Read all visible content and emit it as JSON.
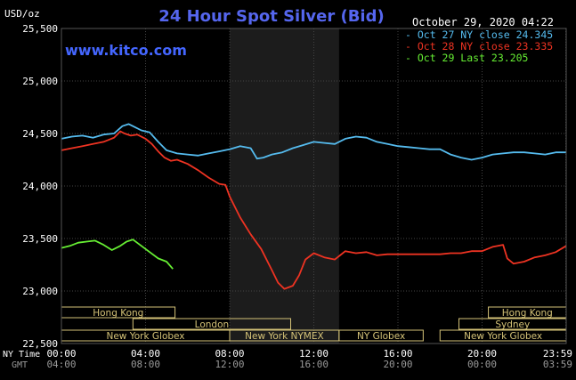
{
  "chart_data": {
    "type": "line",
    "title": "24 Hour Spot Silver (Bid)",
    "ylabel": "USD/oz",
    "watermark": "www.kitco.com",
    "timestamp": "October 29, 2020 04:22",
    "ylim": [
      22500,
      25500
    ],
    "y_ticks": [
      "25,500",
      "25,000",
      "24,500",
      "24,000",
      "23,500",
      "23,000",
      "22,500"
    ],
    "y_tick_values": [
      25500,
      25000,
      24500,
      24000,
      23500,
      23000,
      22500
    ],
    "xlim": [
      0,
      24
    ],
    "ny_time_label": "NY Time",
    "gmt_label": "GMT",
    "x_ticks_ny": [
      "00:00",
      "04:00",
      "08:00",
      "12:00",
      "16:00",
      "20:00",
      "23:59"
    ],
    "x_ticks_gmt": [
      "04:00",
      "08:00",
      "12:00",
      "16:00",
      "20:00",
      "00:00",
      "03:59"
    ],
    "x_tick_values": [
      0,
      4,
      8,
      12,
      16,
      20,
      23.983
    ],
    "shaded_region": [
      8.0,
      13.2
    ],
    "sessions": [
      {
        "name": "Hong Kong",
        "row": 0,
        "start": 0.0,
        "end": 5.4
      },
      {
        "name": "Hong Kong",
        "row": 0,
        "start": 20.3,
        "end": 24.0
      },
      {
        "name": "London",
        "row": 1,
        "start": 3.4,
        "end": 10.9
      },
      {
        "name": "Sydney",
        "row": 1,
        "start": 18.9,
        "end": 24.0
      },
      {
        "name": "New York Globex",
        "row": 2,
        "start": 0.0,
        "end": 8.0
      },
      {
        "name": "New York NYMEX",
        "row": 2,
        "start": 8.0,
        "end": 13.2
      },
      {
        "name": "NY Globex",
        "row": 2,
        "start": 13.2,
        "end": 17.2
      },
      {
        "name": "New York Globex",
        "row": 2,
        "start": 18.0,
        "end": 24.0
      }
    ],
    "legend": [
      {
        "label": "Oct 27 NY close 24.345",
        "color": "#55bbee"
      },
      {
        "label": "Oct 28 NY close 23.335",
        "color": "#ee3322"
      },
      {
        "label": "Oct 29 Last 23.205",
        "color": "#66ee33"
      }
    ],
    "series": [
      {
        "name": "Oct 27",
        "color": "#55bbee",
        "x": [
          0,
          0.5,
          1,
          1.5,
          2,
          2.5,
          2.9,
          3.2,
          3.5,
          3.8,
          4.2,
          4.6,
          5,
          5.5,
          6,
          6.5,
          7,
          7.5,
          8,
          8.5,
          9,
          9.3,
          9.6,
          10,
          10.5,
          11,
          11.5,
          12,
          12.5,
          13,
          13.5,
          14,
          14.5,
          15,
          15.5,
          16,
          16.5,
          17,
          17.5,
          18,
          18.5,
          19,
          19.5,
          20,
          20.5,
          21,
          21.5,
          22,
          22.5,
          23,
          23.5,
          24
        ],
        "y": [
          24450,
          24470,
          24480,
          24460,
          24490,
          24500,
          24570,
          24590,
          24560,
          24530,
          24510,
          24420,
          24340,
          24310,
          24300,
          24290,
          24310,
          24330,
          24350,
          24380,
          24360,
          24260,
          24270,
          24300,
          24320,
          24360,
          24390,
          24420,
          24410,
          24400,
          24450,
          24470,
          24460,
          24420,
          24400,
          24380,
          24370,
          24360,
          24350,
          24350,
          24300,
          24270,
          24250,
          24270,
          24300,
          24310,
          24320,
          24320,
          24310,
          24300,
          24320,
          24320
        ]
      },
      {
        "name": "Oct 28",
        "color": "#ee3322",
        "x": [
          0,
          0.5,
          1,
          1.5,
          2,
          2.5,
          2.8,
          3,
          3.3,
          3.6,
          4,
          4.3,
          4.6,
          4.9,
          5.2,
          5.5,
          6,
          6.5,
          7,
          7.5,
          7.8,
          8,
          8.5,
          9,
          9.5,
          10,
          10.3,
          10.6,
          11,
          11.3,
          11.6,
          12,
          12.5,
          13,
          13.5,
          14,
          14.5,
          15,
          15.5,
          16,
          17,
          18,
          18.5,
          19,
          19.5,
          20,
          20.5,
          21,
          21.2,
          21.5,
          22,
          22.5,
          23,
          23.5,
          24
        ],
        "y": [
          24340,
          24360,
          24380,
          24400,
          24420,
          24460,
          24520,
          24500,
          24480,
          24490,
          24450,
          24400,
          24330,
          24270,
          24240,
          24250,
          24210,
          24150,
          24080,
          24020,
          24010,
          23900,
          23700,
          23540,
          23400,
          23200,
          23080,
          23020,
          23050,
          23150,
          23300,
          23360,
          23320,
          23300,
          23380,
          23360,
          23370,
          23340,
          23350,
          23350,
          23350,
          23350,
          23360,
          23360,
          23380,
          23380,
          23420,
          23440,
          23310,
          23260,
          23280,
          23320,
          23340,
          23370,
          23430
        ]
      },
      {
        "name": "Oct 29",
        "color": "#66ee33",
        "x": [
          0,
          0.4,
          0.8,
          1.2,
          1.6,
          2,
          2.4,
          2.8,
          3.1,
          3.4,
          3.8,
          4.2,
          4.6,
          5.0,
          5.3
        ],
        "y": [
          23410,
          23430,
          23460,
          23470,
          23480,
          23440,
          23390,
          23430,
          23470,
          23490,
          23430,
          23370,
          23310,
          23280,
          23210
        ]
      }
    ]
  }
}
